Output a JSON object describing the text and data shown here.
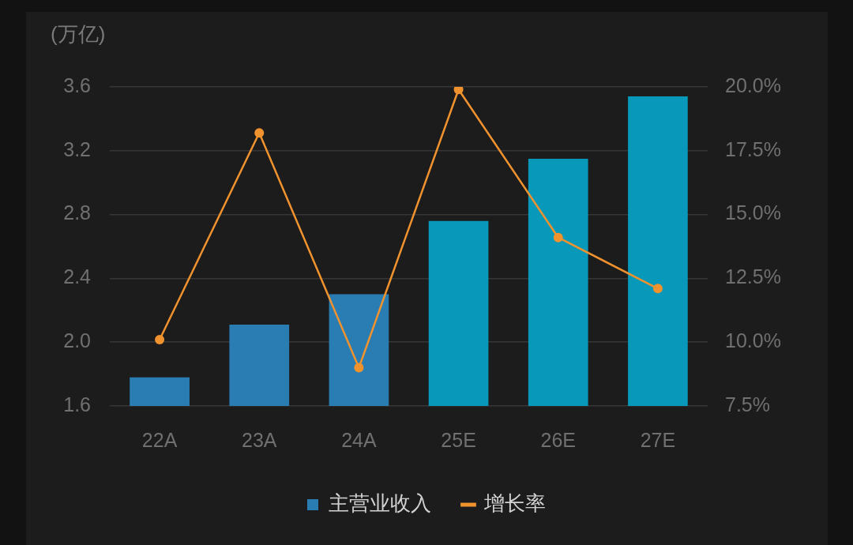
{
  "chart_data": {
    "type": "bar",
    "ylabel": "(万亿)",
    "categories": [
      "22A",
      "23A",
      "24A",
      "25E",
      "26E",
      "27E"
    ],
    "series": [
      {
        "name": "主营业收入",
        "color": "#2a7db3",
        "colors": [
          "#2a7db3",
          "#2a7db3",
          "#2a7db3",
          "#0898b9",
          "#0898b9",
          "#0898b9"
        ],
        "values": [
          1.78,
          2.11,
          2.3,
          2.76,
          3.15,
          3.54
        ]
      },
      {
        "name": "增长率",
        "type": "line",
        "axis": "y2",
        "color": "#f0922e",
        "values": [
          10.1,
          18.2,
          9.0,
          19.9,
          14.1,
          12.1
        ]
      }
    ],
    "ylim": [
      1.6,
      3.6
    ],
    "yticks": [
      1.6,
      {
        "value": 2,
        "label": "2.0"
      },
      2.4,
      2.8,
      3.2,
      3.6
    ],
    "y2lim": [
      7.5,
      20
    ],
    "y2ticks": [
      {
        "value": 7.5,
        "label": "7.5%"
      },
      {
        "value": 10,
        "label": "10.0%"
      },
      {
        "value": 12.5,
        "label": "12.5%"
      },
      {
        "value": 15,
        "label": "15.0%"
      },
      {
        "value": 17.5,
        "label": "17.5%"
      },
      {
        "value": 20,
        "label": "20.0%"
      }
    ],
    "grid": "y",
    "legend": "bottom",
    "marker": "circle"
  }
}
